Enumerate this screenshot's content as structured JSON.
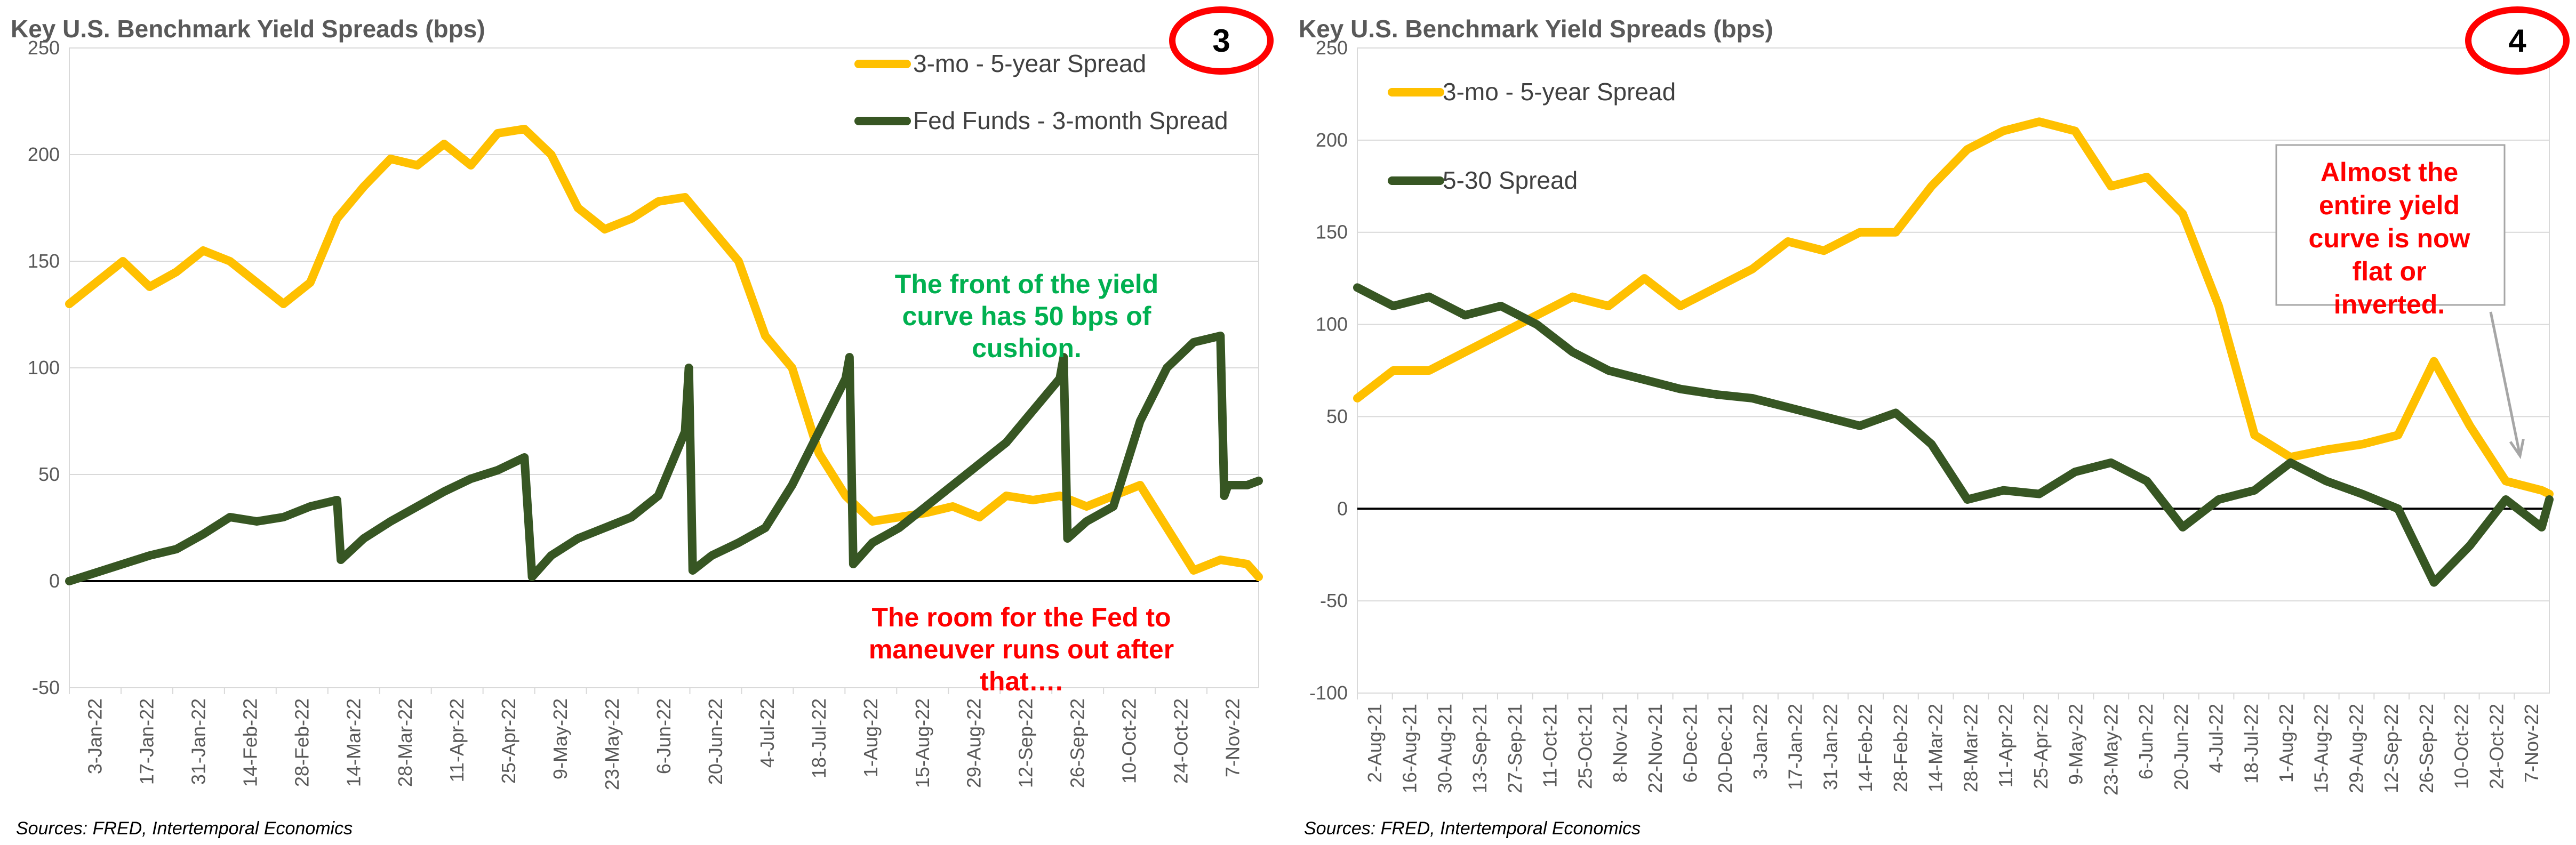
{
  "colors": {
    "series_yellow": "#ffc000",
    "series_green": "#375623",
    "grid": "#d9d9d9",
    "badge_ring": "#ff0000"
  },
  "chart_data": [
    {
      "type": "line",
      "title": "Key U.S. Benchmark Yield Spreads (bps)",
      "badge": "3",
      "source": "Sources: FRED, Intertemporal Economics",
      "ylim": [
        -50,
        250
      ],
      "yticks": [
        "-50",
        "0",
        "50",
        "100",
        "150",
        "200",
        "250"
      ],
      "xlim": [
        "2022-01-03",
        "2022-11-10"
      ],
      "xtick_labels": [
        "3-Jan-22",
        "17-Jan-22",
        "31-Jan-22",
        "14-Feb-22",
        "28-Feb-22",
        "14-Mar-22",
        "28-Mar-22",
        "11-Apr-22",
        "25-Apr-22",
        "9-May-22",
        "23-May-22",
        "6-Jun-22",
        "20-Jun-22",
        "4-Jul-22",
        "18-Jul-22",
        "1-Aug-22",
        "15-Aug-22",
        "29-Aug-22",
        "12-Sep-22",
        "26-Sep-22",
        "10-Oct-22",
        "24-Oct-22",
        "7-Nov-22"
      ],
      "grid": true,
      "legend": "top-right",
      "annotations": [
        {
          "text": [
            "The front of the yield",
            "curve has 50 bps of",
            "cushion."
          ],
          "color": "green"
        },
        {
          "text": [
            "The room for the Fed to",
            "maneuver runs out after",
            "that…."
          ],
          "color": "red"
        }
      ],
      "series": [
        {
          "name": "3-mo - 5-year Spread",
          "color": "yellow",
          "x": [
            "2022-01-03",
            "2022-01-10",
            "2022-01-17",
            "2022-01-24",
            "2022-01-31",
            "2022-02-07",
            "2022-02-14",
            "2022-02-21",
            "2022-02-28",
            "2022-03-07",
            "2022-03-14",
            "2022-03-21",
            "2022-03-28",
            "2022-04-04",
            "2022-04-11",
            "2022-04-18",
            "2022-04-25",
            "2022-05-02",
            "2022-05-09",
            "2022-05-16",
            "2022-05-23",
            "2022-05-30",
            "2022-06-06",
            "2022-06-13",
            "2022-06-20",
            "2022-06-27",
            "2022-07-04",
            "2022-07-11",
            "2022-07-18",
            "2022-07-25",
            "2022-08-01",
            "2022-08-08",
            "2022-08-15",
            "2022-08-22",
            "2022-08-29",
            "2022-09-05",
            "2022-09-12",
            "2022-09-19",
            "2022-09-26",
            "2022-10-03",
            "2022-10-10",
            "2022-10-17",
            "2022-10-24",
            "2022-10-31",
            "2022-11-07",
            "2022-11-10"
          ],
          "values": [
            130,
            140,
            150,
            138,
            145,
            155,
            150,
            140,
            130,
            140,
            170,
            185,
            198,
            195,
            205,
            195,
            210,
            212,
            200,
            175,
            165,
            170,
            178,
            180,
            165,
            150,
            115,
            100,
            60,
            40,
            28,
            30,
            32,
            35,
            30,
            40,
            38,
            40,
            35,
            40,
            45,
            25,
            5,
            10,
            8,
            2
          ]
        },
        {
          "name": "Fed Funds - 3-month Spread",
          "color": "green",
          "x": [
            "2022-01-03",
            "2022-01-10",
            "2022-01-17",
            "2022-01-24",
            "2022-01-31",
            "2022-02-07",
            "2022-02-14",
            "2022-02-21",
            "2022-02-28",
            "2022-03-07",
            "2022-03-14",
            "2022-03-15",
            "2022-03-21",
            "2022-03-28",
            "2022-04-04",
            "2022-04-11",
            "2022-04-18",
            "2022-04-25",
            "2022-05-02",
            "2022-05-04",
            "2022-05-09",
            "2022-05-16",
            "2022-05-23",
            "2022-05-30",
            "2022-06-06",
            "2022-06-13",
            "2022-06-14",
            "2022-06-15",
            "2022-06-20",
            "2022-06-27",
            "2022-07-04",
            "2022-07-11",
            "2022-07-18",
            "2022-07-25",
            "2022-07-26",
            "2022-07-27",
            "2022-08-01",
            "2022-08-08",
            "2022-08-15",
            "2022-08-22",
            "2022-08-29",
            "2022-09-05",
            "2022-09-12",
            "2022-09-19",
            "2022-09-20",
            "2022-09-21",
            "2022-09-26",
            "2022-10-03",
            "2022-10-10",
            "2022-10-17",
            "2022-10-24",
            "2022-10-31",
            "2022-11-01",
            "2022-11-02",
            "2022-11-07",
            "2022-11-10"
          ],
          "values": [
            0,
            4,
            8,
            12,
            15,
            22,
            30,
            28,
            30,
            35,
            38,
            10,
            20,
            28,
            35,
            42,
            48,
            52,
            58,
            2,
            12,
            20,
            25,
            30,
            40,
            70,
            100,
            5,
            12,
            18,
            25,
            45,
            70,
            95,
            105,
            8,
            18,
            25,
            35,
            45,
            55,
            65,
            80,
            95,
            105,
            20,
            28,
            35,
            75,
            100,
            112,
            115,
            40,
            45,
            45,
            47
          ]
        }
      ]
    },
    {
      "type": "line",
      "title": "Key U.S. Benchmark Yield Spreads (bps)",
      "badge": "4",
      "source": "Sources: FRED, Intertemporal Economics",
      "ylim": [
        -100,
        250
      ],
      "yticks": [
        "-100",
        "-50",
        "0",
        "50",
        "100",
        "150",
        "200",
        "250"
      ],
      "xlim": [
        "2021-08-02",
        "2022-11-10"
      ],
      "xtick_labels": [
        "2-Aug-21",
        "16-Aug-21",
        "30-Aug-21",
        "13-Sep-21",
        "27-Sep-21",
        "11-Oct-21",
        "25-Oct-21",
        "8-Nov-21",
        "22-Nov-21",
        "6-Dec-21",
        "20-Dec-21",
        "3-Jan-22",
        "17-Jan-22",
        "31-Jan-22",
        "14-Feb-22",
        "28-Feb-22",
        "14-Mar-22",
        "28-Mar-22",
        "11-Apr-22",
        "25-Apr-22",
        "9-May-22",
        "23-May-22",
        "6-Jun-22",
        "20-Jun-22",
        "4-Jul-22",
        "18-Jul-22",
        "1-Aug-22",
        "15-Aug-22",
        "29-Aug-22",
        "12-Sep-22",
        "26-Sep-22",
        "10-Oct-22",
        "24-Oct-22",
        "7-Nov-22"
      ],
      "grid": true,
      "legend": "top-left",
      "annotations": [
        {
          "text": [
            "Almost the",
            "entire yield",
            "curve is now",
            "flat or",
            "inverted."
          ],
          "color": "red"
        }
      ],
      "series": [
        {
          "name": "3-mo - 5-year Spread",
          "color": "yellow",
          "x": [
            "2021-08-02",
            "2021-08-16",
            "2021-08-30",
            "2021-09-13",
            "2021-09-27",
            "2021-10-11",
            "2021-10-25",
            "2021-11-08",
            "2021-11-22",
            "2021-12-06",
            "2021-12-20",
            "2022-01-03",
            "2022-01-17",
            "2022-01-31",
            "2022-02-14",
            "2022-02-28",
            "2022-03-14",
            "2022-03-28",
            "2022-04-11",
            "2022-04-25",
            "2022-05-09",
            "2022-05-23",
            "2022-06-06",
            "2022-06-20",
            "2022-07-04",
            "2022-07-18",
            "2022-08-01",
            "2022-08-15",
            "2022-08-29",
            "2022-09-12",
            "2022-09-26",
            "2022-10-10",
            "2022-10-24",
            "2022-11-07",
            "2022-11-10"
          ],
          "values": [
            60,
            75,
            75,
            85,
            95,
            105,
            115,
            110,
            125,
            110,
            120,
            130,
            145,
            140,
            150,
            150,
            175,
            195,
            205,
            210,
            205,
            175,
            180,
            160,
            110,
            40,
            28,
            32,
            35,
            40,
            80,
            45,
            15,
            10,
            8
          ]
        },
        {
          "name": "5-30 Spread",
          "color": "green",
          "x": [
            "2021-08-02",
            "2021-08-16",
            "2021-08-30",
            "2021-09-13",
            "2021-09-27",
            "2021-10-11",
            "2021-10-25",
            "2021-11-08",
            "2021-11-22",
            "2021-12-06",
            "2021-12-20",
            "2022-01-03",
            "2022-01-17",
            "2022-01-31",
            "2022-02-14",
            "2022-02-28",
            "2022-03-14",
            "2022-03-28",
            "2022-04-11",
            "2022-04-25",
            "2022-05-09",
            "2022-05-23",
            "2022-06-06",
            "2022-06-20",
            "2022-07-04",
            "2022-07-18",
            "2022-08-01",
            "2022-08-15",
            "2022-08-29",
            "2022-09-12",
            "2022-09-26",
            "2022-10-10",
            "2022-10-24",
            "2022-11-07",
            "2022-11-10"
          ],
          "values": [
            120,
            110,
            115,
            105,
            110,
            100,
            85,
            75,
            70,
            65,
            62,
            60,
            55,
            50,
            45,
            52,
            35,
            5,
            10,
            8,
            20,
            25,
            15,
            -10,
            5,
            10,
            25,
            15,
            8,
            0,
            -40,
            -20,
            5,
            -10,
            5
          ]
        }
      ]
    }
  ]
}
